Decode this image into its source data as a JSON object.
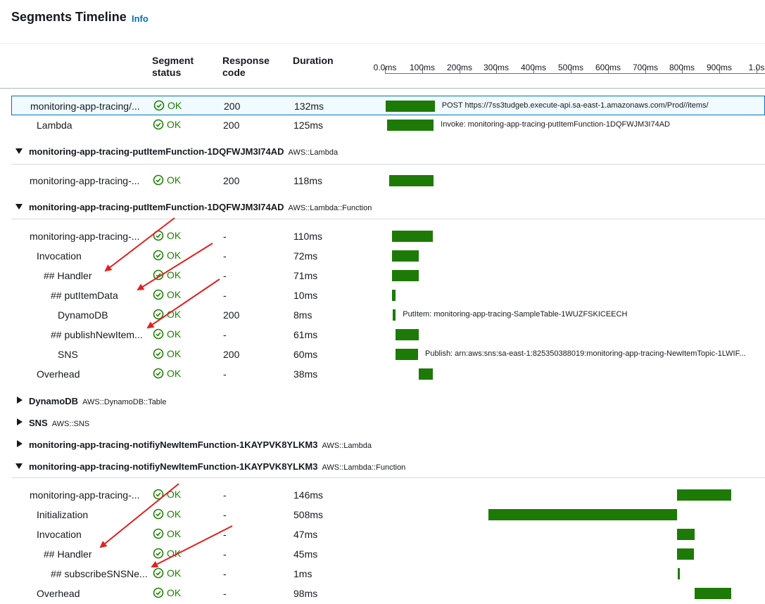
{
  "header": {
    "title": "Segments Timeline",
    "info": "Info"
  },
  "columns": {
    "status": "Segment status",
    "code": "Response code",
    "duration": "Duration"
  },
  "timeline_ticks": [
    "0.0ms",
    "100ms",
    "200ms",
    "300ms",
    "400ms",
    "500ms",
    "600ms",
    "700ms",
    "800ms",
    "900ms",
    "1.0s"
  ],
  "colors": {
    "ok": "#1d8102",
    "bar": "#1d7a06",
    "link": "#0073bb",
    "annotation_arrow": "#e02020"
  },
  "rows_top": [
    {
      "name": "monitoring-app-tracing/...",
      "status": "OK",
      "code": "200",
      "duration": "132ms",
      "start_ms": 0,
      "length_ms": 132,
      "label": "POST https://7ss3tudgeb.execute-api.sa-east-1.amazonaws.com/Prod//items/",
      "selected": true
    },
    {
      "name": "Lambda",
      "status": "OK",
      "code": "200",
      "duration": "125ms",
      "start_ms": 6,
      "length_ms": 125,
      "label": "Invoke: monitoring-app-tracing-putItemFunction-1DQFWJM3I74AD"
    }
  ],
  "group1": {
    "name": "monitoring-app-tracing-putItemFunction-1DQFWJM3I74AD",
    "type": "AWS::Lambda",
    "expanded": true
  },
  "rows_g1": [
    {
      "name": "monitoring-app-tracing-...",
      "status": "OK",
      "code": "200",
      "duration": "118ms",
      "start_ms": 12,
      "length_ms": 118,
      "label": ""
    }
  ],
  "group2": {
    "name": "monitoring-app-tracing-putItemFunction-1DQFWJM3I74AD",
    "type": "AWS::Lambda::Function",
    "expanded": true
  },
  "rows_g2": [
    {
      "name": "monitoring-app-tracing-...",
      "status": "OK",
      "code": "-",
      "duration": "110ms",
      "start_ms": 19,
      "length_ms": 110,
      "label": ""
    },
    {
      "name": "Invocation",
      "status": "OK",
      "code": "-",
      "duration": "72ms",
      "start_ms": 19,
      "length_ms": 72,
      "label": ""
    },
    {
      "name": "## Handler",
      "status": "OK",
      "code": "-",
      "duration": "71ms",
      "start_ms": 19,
      "length_ms": 71,
      "label": ""
    },
    {
      "name": "## putItemData",
      "status": "OK",
      "code": "-",
      "duration": "10ms",
      "start_ms": 19,
      "length_ms": 10,
      "label": ""
    },
    {
      "name": "DynamoDB",
      "status": "OK",
      "code": "200",
      "duration": "8ms",
      "start_ms": 21,
      "length_ms": 8,
      "label": "PutItem: monitoring-app-tracing-SampleTable-1WUZFSKICEECH"
    },
    {
      "name": "## publishNewItem...",
      "status": "OK",
      "code": "-",
      "duration": "61ms",
      "start_ms": 29,
      "length_ms": 61,
      "label": ""
    },
    {
      "name": "SNS",
      "status": "OK",
      "code": "200",
      "duration": "60ms",
      "start_ms": 29,
      "length_ms": 60,
      "label": "Publish: arn:aws:sns:sa-east-1:825350388019:monitoring-app-tracing-NewItemTopic-1LWIF..."
    },
    {
      "name": "Overhead",
      "status": "OK",
      "code": "-",
      "duration": "38ms",
      "start_ms": 91,
      "length_ms": 38,
      "label": ""
    }
  ],
  "group3": {
    "name": "DynamoDB",
    "type": "AWS::DynamoDB::Table",
    "expanded": false
  },
  "group4": {
    "name": "SNS",
    "type": "AWS::SNS",
    "expanded": false
  },
  "group5": {
    "name": "monitoring-app-tracing-notifiyNewItemFunction-1KAYPVK8YLKM3",
    "type": "AWS::Lambda",
    "expanded": false
  },
  "group6": {
    "name": "monitoring-app-tracing-notifiyNewItemFunction-1KAYPVK8YLKM3",
    "type": "AWS::Lambda::Function",
    "expanded": true
  },
  "rows_g6": [
    {
      "name": "monitoring-app-tracing-...",
      "status": "OK",
      "code": "-",
      "duration": "146ms",
      "start_ms": 786,
      "length_ms": 146,
      "label": ""
    },
    {
      "name": "Initialization",
      "status": "OK",
      "code": "-",
      "duration": "508ms",
      "start_ms": 278,
      "length_ms": 508,
      "label": ""
    },
    {
      "name": "Invocation",
      "status": "OK",
      "code": "-",
      "duration": "47ms",
      "start_ms": 786,
      "length_ms": 47,
      "label": ""
    },
    {
      "name": "## Handler",
      "status": "OK",
      "code": "-",
      "duration": "45ms",
      "start_ms": 786,
      "length_ms": 45,
      "label": ""
    },
    {
      "name": "## subscribeSNSNe...",
      "status": "OK",
      "code": "-",
      "duration": "1ms",
      "start_ms": 788,
      "length_ms": 1,
      "label": ""
    },
    {
      "name": "Overhead",
      "status": "OK",
      "code": "-",
      "duration": "98ms",
      "start_ms": 834,
      "length_ms": 98,
      "label": ""
    }
  ]
}
